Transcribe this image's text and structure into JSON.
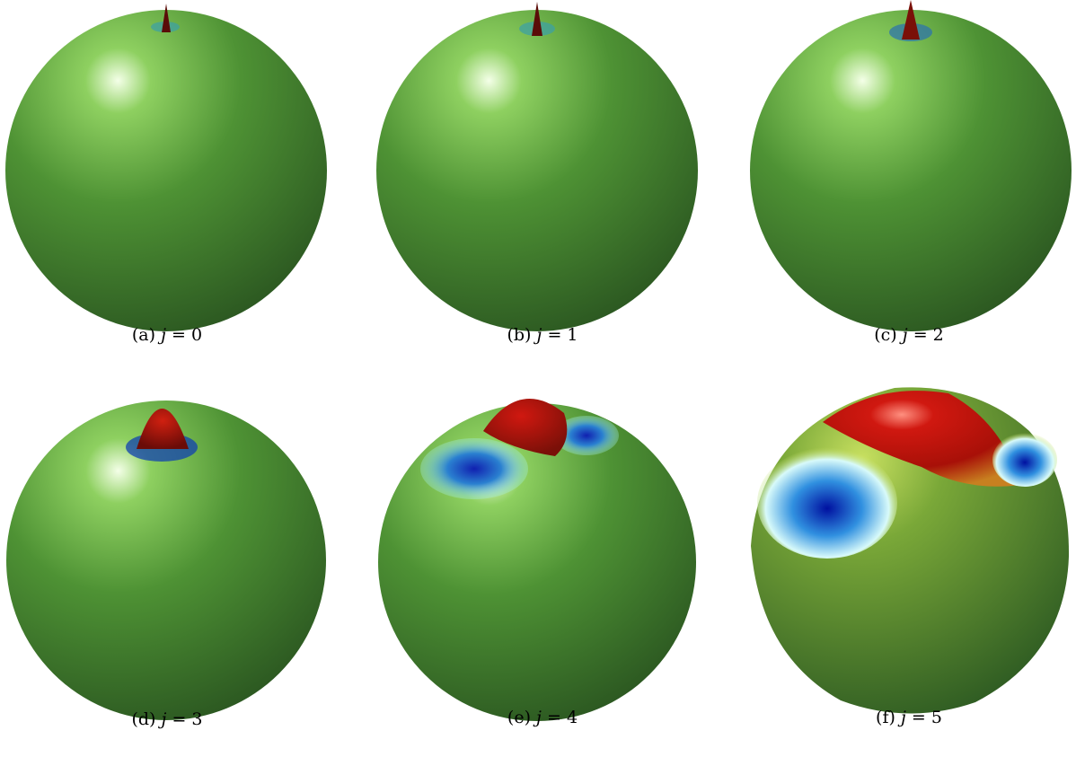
{
  "panels": [
    {
      "label": "(a)",
      "var": "j",
      "eq": "= 0",
      "j": 0
    },
    {
      "label": "(b)",
      "var": "j",
      "eq": "= 1",
      "j": 1
    },
    {
      "label": "(c)",
      "var": "j",
      "eq": "= 2",
      "j": 2
    },
    {
      "label": "(d)",
      "var": "j",
      "eq": "= 3",
      "j": 3
    },
    {
      "label": "(e)",
      "var": "j",
      "eq": "= 4",
      "j": 4
    },
    {
      "label": "(f)",
      "var": "j",
      "eq": "= 5",
      "j": 5
    }
  ],
  "colors": {
    "sphere_light": "#6fc24a",
    "sphere_mid": "#4a8c32",
    "sphere_dark": "#2d5a22",
    "peak_red": "#c01010",
    "peak_dark": "#5a0c08",
    "trough_blue": "#1030c0",
    "trough_cyan": "#a8f4f4"
  }
}
